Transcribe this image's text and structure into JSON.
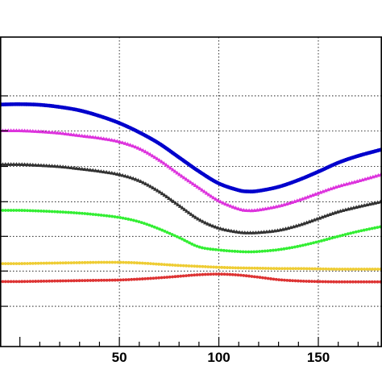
{
  "chart_data": {
    "type": "line",
    "title": "",
    "xlabel": "",
    "ylabel": "",
    "xlim": [
      -10,
      182
    ],
    "ylim": [
      0,
      1
    ],
    "grid": true,
    "legend": "none",
    "x_ticks": [
      50,
      100,
      150
    ],
    "y_gridlines": [
      0.13,
      0.244,
      0.356,
      0.468,
      0.582,
      0.697,
      0.81
    ],
    "series": [
      {
        "color": "#0000cc",
        "marker": "circle",
        "x": [
          -10,
          0,
          10,
          20,
          30,
          40,
          50,
          60,
          70,
          80,
          90,
          100,
          110,
          115,
          120,
          130,
          140,
          150,
          160,
          170,
          182
        ],
        "y": [
          0.782,
          0.783,
          0.781,
          0.774,
          0.763,
          0.745,
          0.722,
          0.692,
          0.656,
          0.611,
          0.566,
          0.527,
          0.505,
          0.501,
          0.503,
          0.516,
          0.538,
          0.565,
          0.594,
          0.616,
          0.637
        ]
      },
      {
        "color": "#dd33dd",
        "marker": "triangle",
        "x": [
          -10,
          0,
          10,
          20,
          30,
          40,
          50,
          60,
          70,
          80,
          90,
          100,
          110,
          115,
          120,
          130,
          140,
          150,
          160,
          170,
          182
        ],
        "y": [
          0.698,
          0.698,
          0.695,
          0.69,
          0.682,
          0.674,
          0.662,
          0.64,
          0.603,
          0.557,
          0.513,
          0.471,
          0.445,
          0.44,
          0.442,
          0.454,
          0.473,
          0.496,
          0.518,
          0.535,
          0.557
        ]
      },
      {
        "color": "#333333",
        "marker": "triangle",
        "x": [
          -10,
          0,
          10,
          20,
          30,
          40,
          50,
          60,
          70,
          80,
          90,
          100,
          110,
          115,
          120,
          130,
          140,
          150,
          160,
          170,
          182
        ],
        "y": [
          0.589,
          0.589,
          0.586,
          0.582,
          0.575,
          0.567,
          0.556,
          0.536,
          0.501,
          0.456,
          0.411,
          0.383,
          0.37,
          0.368,
          0.369,
          0.376,
          0.392,
          0.414,
          0.436,
          0.452,
          0.469
        ]
      },
      {
        "color": "#33ee33",
        "marker": "circle",
        "x": [
          -10,
          0,
          10,
          20,
          30,
          40,
          50,
          60,
          70,
          80,
          90,
          100,
          110,
          115,
          120,
          130,
          140,
          150,
          160,
          170,
          182
        ],
        "y": [
          0.44,
          0.44,
          0.438,
          0.435,
          0.431,
          0.425,
          0.417,
          0.403,
          0.38,
          0.352,
          0.322,
          0.312,
          0.307,
          0.306,
          0.307,
          0.313,
          0.324,
          0.339,
          0.356,
          0.372,
          0.388
        ]
      },
      {
        "color": "#eecc33",
        "marker": "circle",
        "x": [
          -10,
          0,
          10,
          20,
          30,
          40,
          50,
          60,
          70,
          80,
          90,
          100,
          110,
          120,
          130,
          140,
          150,
          160,
          170,
          182
        ],
        "y": [
          0.268,
          0.268,
          0.269,
          0.27,
          0.271,
          0.272,
          0.272,
          0.27,
          0.266,
          0.262,
          0.259,
          0.256,
          0.254,
          0.253,
          0.252,
          0.252,
          0.251,
          0.25,
          0.25,
          0.25
        ]
      },
      {
        "color": "#dd3333",
        "marker": "circle",
        "x": [
          -10,
          0,
          10,
          20,
          30,
          40,
          50,
          60,
          70,
          80,
          90,
          100,
          110,
          120,
          130,
          140,
          150,
          160,
          170,
          182
        ],
        "y": [
          0.21,
          0.21,
          0.211,
          0.212,
          0.213,
          0.214,
          0.215,
          0.218,
          0.222,
          0.227,
          0.232,
          0.234,
          0.231,
          0.224,
          0.216,
          0.212,
          0.21,
          0.209,
          0.209,
          0.209
        ]
      }
    ]
  }
}
